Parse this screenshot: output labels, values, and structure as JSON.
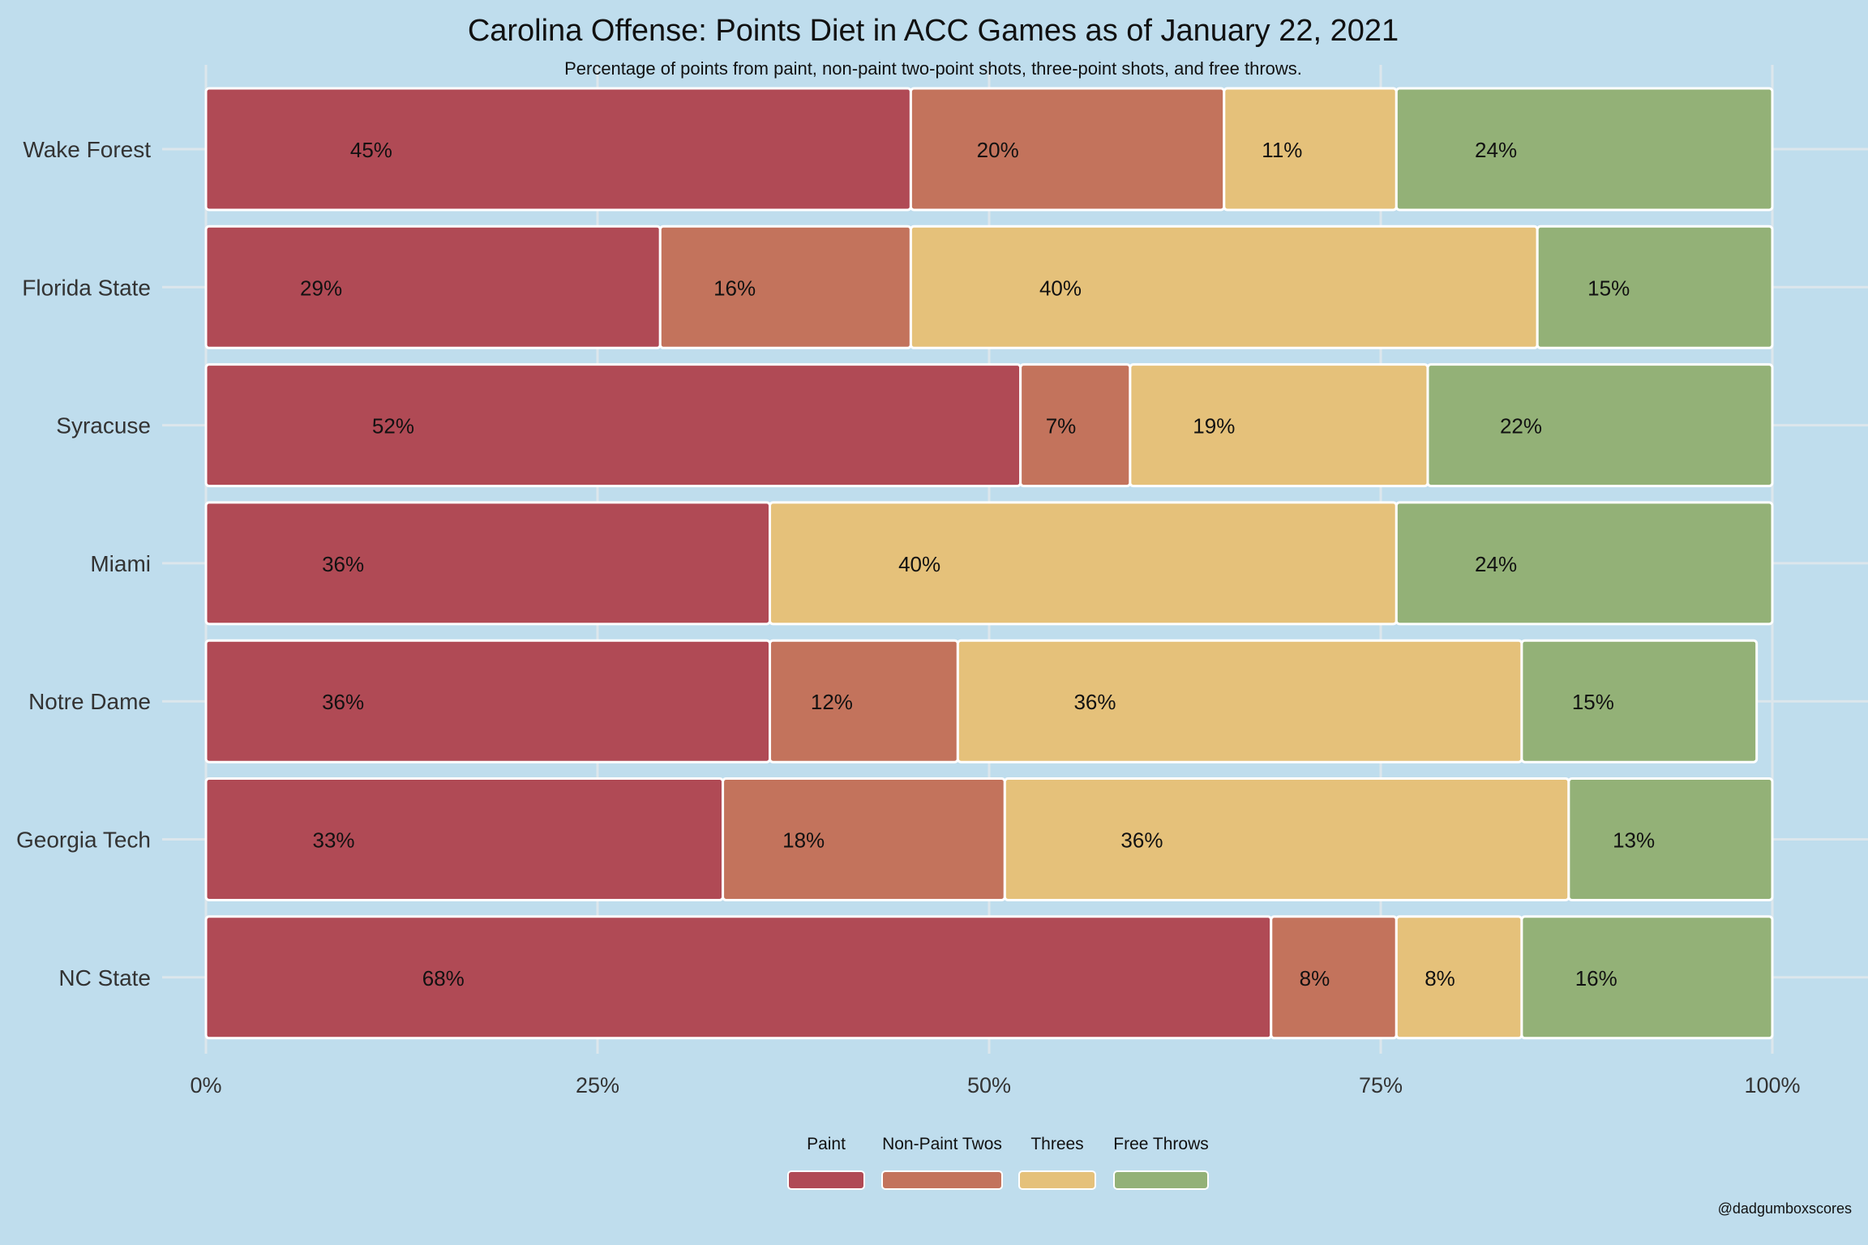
{
  "chart_data": {
    "type": "bar",
    "orientation": "horizontal",
    "stacked": true,
    "title": "Carolina Offense: Points Diet in ACC Games as of January 22, 2021",
    "subtitle": "Percentage of points from paint, non-paint two-point shots, three-point shots, and free throws.",
    "credit": "@dadgumboxscores",
    "categories": [
      "Wake Forest",
      "Florida State",
      "Syracuse",
      "Miami",
      "Notre Dame",
      "Georgia Tech",
      "NC State"
    ],
    "series": [
      {
        "name": "Paint",
        "color": "#B04A55",
        "values": [
          45,
          29,
          52,
          36,
          36,
          33,
          68
        ]
      },
      {
        "name": "Non-Paint Twos",
        "color": "#C3735C",
        "values": [
          20,
          16,
          7,
          0,
          12,
          18,
          8
        ]
      },
      {
        "name": "Threes",
        "color": "#E5C17A",
        "values": [
          11,
          40,
          19,
          40,
          36,
          36,
          8
        ]
      },
      {
        "name": "Free Throws",
        "color": "#93B177",
        "values": [
          24,
          15,
          22,
          24,
          15,
          13,
          16
        ]
      }
    ],
    "x_ticks": [
      "0%",
      "25%",
      "50%",
      "75%",
      "100%"
    ],
    "xlim": [
      0,
      100
    ],
    "legend_position": "bottom",
    "grid": true
  }
}
